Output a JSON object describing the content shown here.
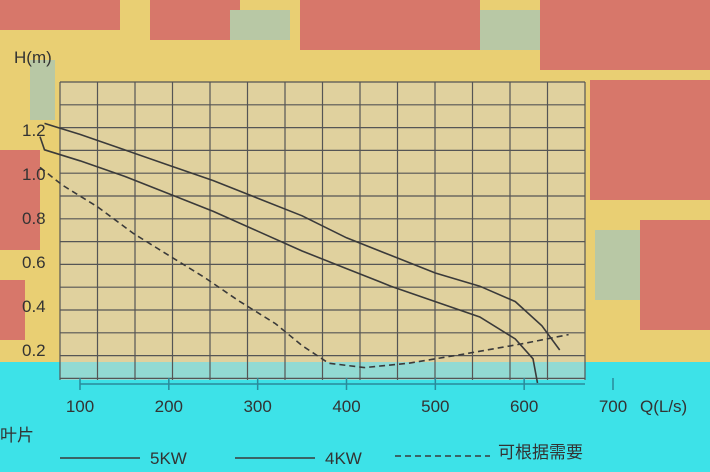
{
  "chart_data": {
    "type": "line",
    "title": "",
    "xlabel": "Q(L/s)",
    "ylabel": "H(m)",
    "xlim": [
      -100,
      700
    ],
    "ylim": [
      0,
      1.33
    ],
    "x_ticks": [
      100,
      200,
      300,
      400,
      500,
      600,
      700
    ],
    "x_tick_labels": [
      "100",
      "200",
      "300",
      "400",
      "500",
      "600",
      "700"
    ],
    "y_ticks": [
      0.2,
      0.4,
      0.6,
      0.8,
      1.0,
      1.2
    ],
    "y_tick_labels": [
      "0.2",
      "0.4",
      "0.6",
      "0.8",
      "1.0",
      "1.2"
    ],
    "grid": true,
    "legend_position": "bottom",
    "legend_title": "叶片",
    "legend_note": "可根据需要",
    "series": [
      {
        "name": "5KW",
        "style": "solid",
        "color": "#3a3a3a",
        "points": [
          [
            60,
            1.23
          ],
          [
            100,
            1.18
          ],
          [
            150,
            1.11
          ],
          [
            200,
            1.04
          ],
          [
            250,
            0.97
          ],
          [
            300,
            0.89
          ],
          [
            350,
            0.81
          ],
          [
            400,
            0.71
          ],
          [
            450,
            0.63
          ],
          [
            500,
            0.55
          ],
          [
            550,
            0.49
          ],
          [
            590,
            0.42
          ],
          [
            620,
            0.31
          ],
          [
            640,
            0.2
          ]
        ]
      },
      {
        "name": "4KW",
        "style": "solid",
        "color": "#3a3a3a",
        "points": [
          [
            55,
            1.17
          ],
          [
            60,
            1.11
          ],
          [
            100,
            1.06
          ],
          [
            150,
            0.99
          ],
          [
            200,
            0.91
          ],
          [
            250,
            0.83
          ],
          [
            300,
            0.74
          ],
          [
            350,
            0.65
          ],
          [
            400,
            0.57
          ],
          [
            450,
            0.49
          ],
          [
            500,
            0.42
          ],
          [
            550,
            0.35
          ],
          [
            590,
            0.25
          ],
          [
            610,
            0.16
          ],
          [
            615,
            0.05
          ]
        ]
      },
      {
        "name": "",
        "style": "dashed",
        "color": "#3a3a3a",
        "points": [
          [
            55,
            1.03
          ],
          [
            80,
            0.95
          ],
          [
            120,
            0.85
          ],
          [
            160,
            0.73
          ],
          [
            200,
            0.63
          ],
          [
            240,
            0.53
          ],
          [
            280,
            0.42
          ],
          [
            320,
            0.32
          ],
          [
            350,
            0.22
          ],
          [
            380,
            0.14
          ],
          [
            420,
            0.12
          ],
          [
            470,
            0.14
          ],
          [
            530,
            0.18
          ],
          [
            600,
            0.23
          ],
          [
            650,
            0.27
          ]
        ]
      }
    ]
  }
}
